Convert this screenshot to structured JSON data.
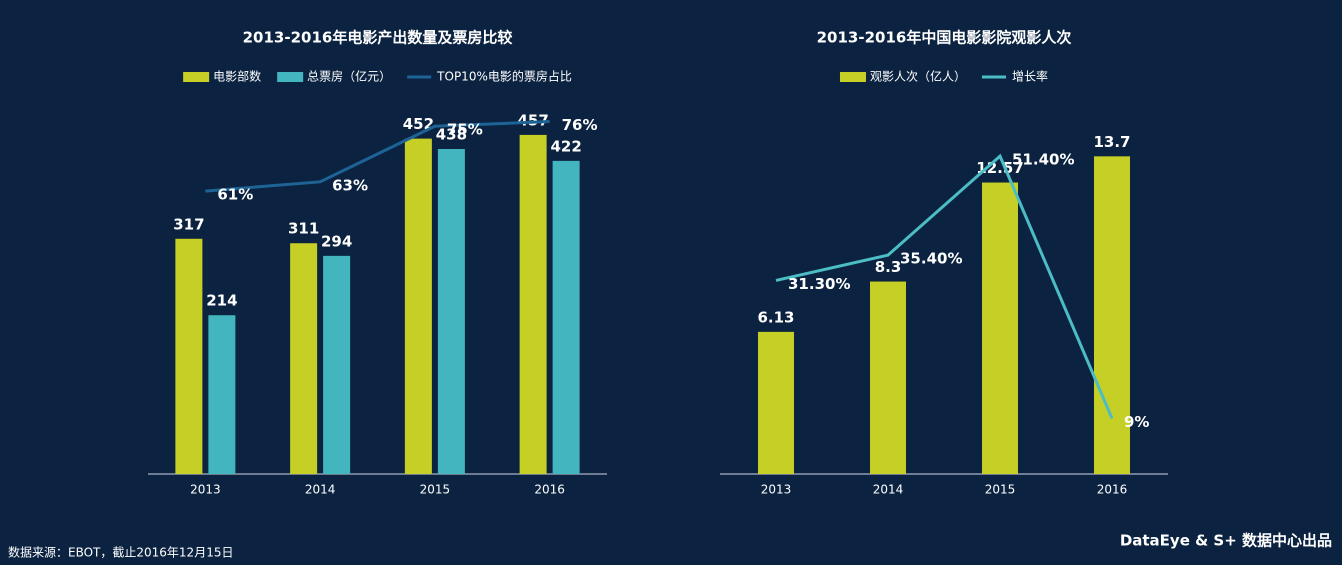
{
  "chart_data": [
    {
      "type": "bar",
      "title": "2013-2016年电影产出数量及票房比较",
      "categories": [
        "2013",
        "2014",
        "2015",
        "2016"
      ],
      "series": [
        {
          "name": "电影部数",
          "color": "#c6cf26",
          "values": [
            317,
            311,
            452,
            457
          ]
        },
        {
          "name": "总票房（亿元）",
          "color": "#43b5be",
          "values": [
            214,
            294,
            438,
            422
          ]
        },
        {
          "name": "TOP10%电影的票房占比",
          "color": "#1e6396",
          "type": "line",
          "axis": "y2",
          "values": [
            61,
            63,
            75,
            76
          ],
          "value_labels": [
            "61%",
            "63%",
            "75%",
            "76%"
          ]
        }
      ],
      "ylim": [
        0,
        500
      ],
      "y2lim": [
        0,
        80
      ],
      "legend": "top"
    },
    {
      "type": "bar",
      "title": "2013-2016年中国电影影院观影人次",
      "categories": [
        "2013",
        "2014",
        "2015",
        "2016"
      ],
      "series": [
        {
          "name": "观影人次（亿人）",
          "color": "#c6cf26",
          "values": [
            6.13,
            8.3,
            12.57,
            13.7
          ]
        },
        {
          "name": "增长率",
          "color": "#4bbdc4",
          "type": "line",
          "axis": "y2",
          "values": [
            31.3,
            35.4,
            51.4,
            9
          ],
          "value_labels": [
            "31.30%",
            "35.40%",
            "51.40%",
            "9%"
          ]
        }
      ],
      "ylim": [
        0,
        16
      ],
      "y2lim": [
        0,
        60
      ],
      "legend": "top"
    }
  ],
  "footer": {
    "source": "数据来源：EBOT，截止2016年12月15日",
    "credit": "DataEye & S+ 数据中心出品"
  }
}
